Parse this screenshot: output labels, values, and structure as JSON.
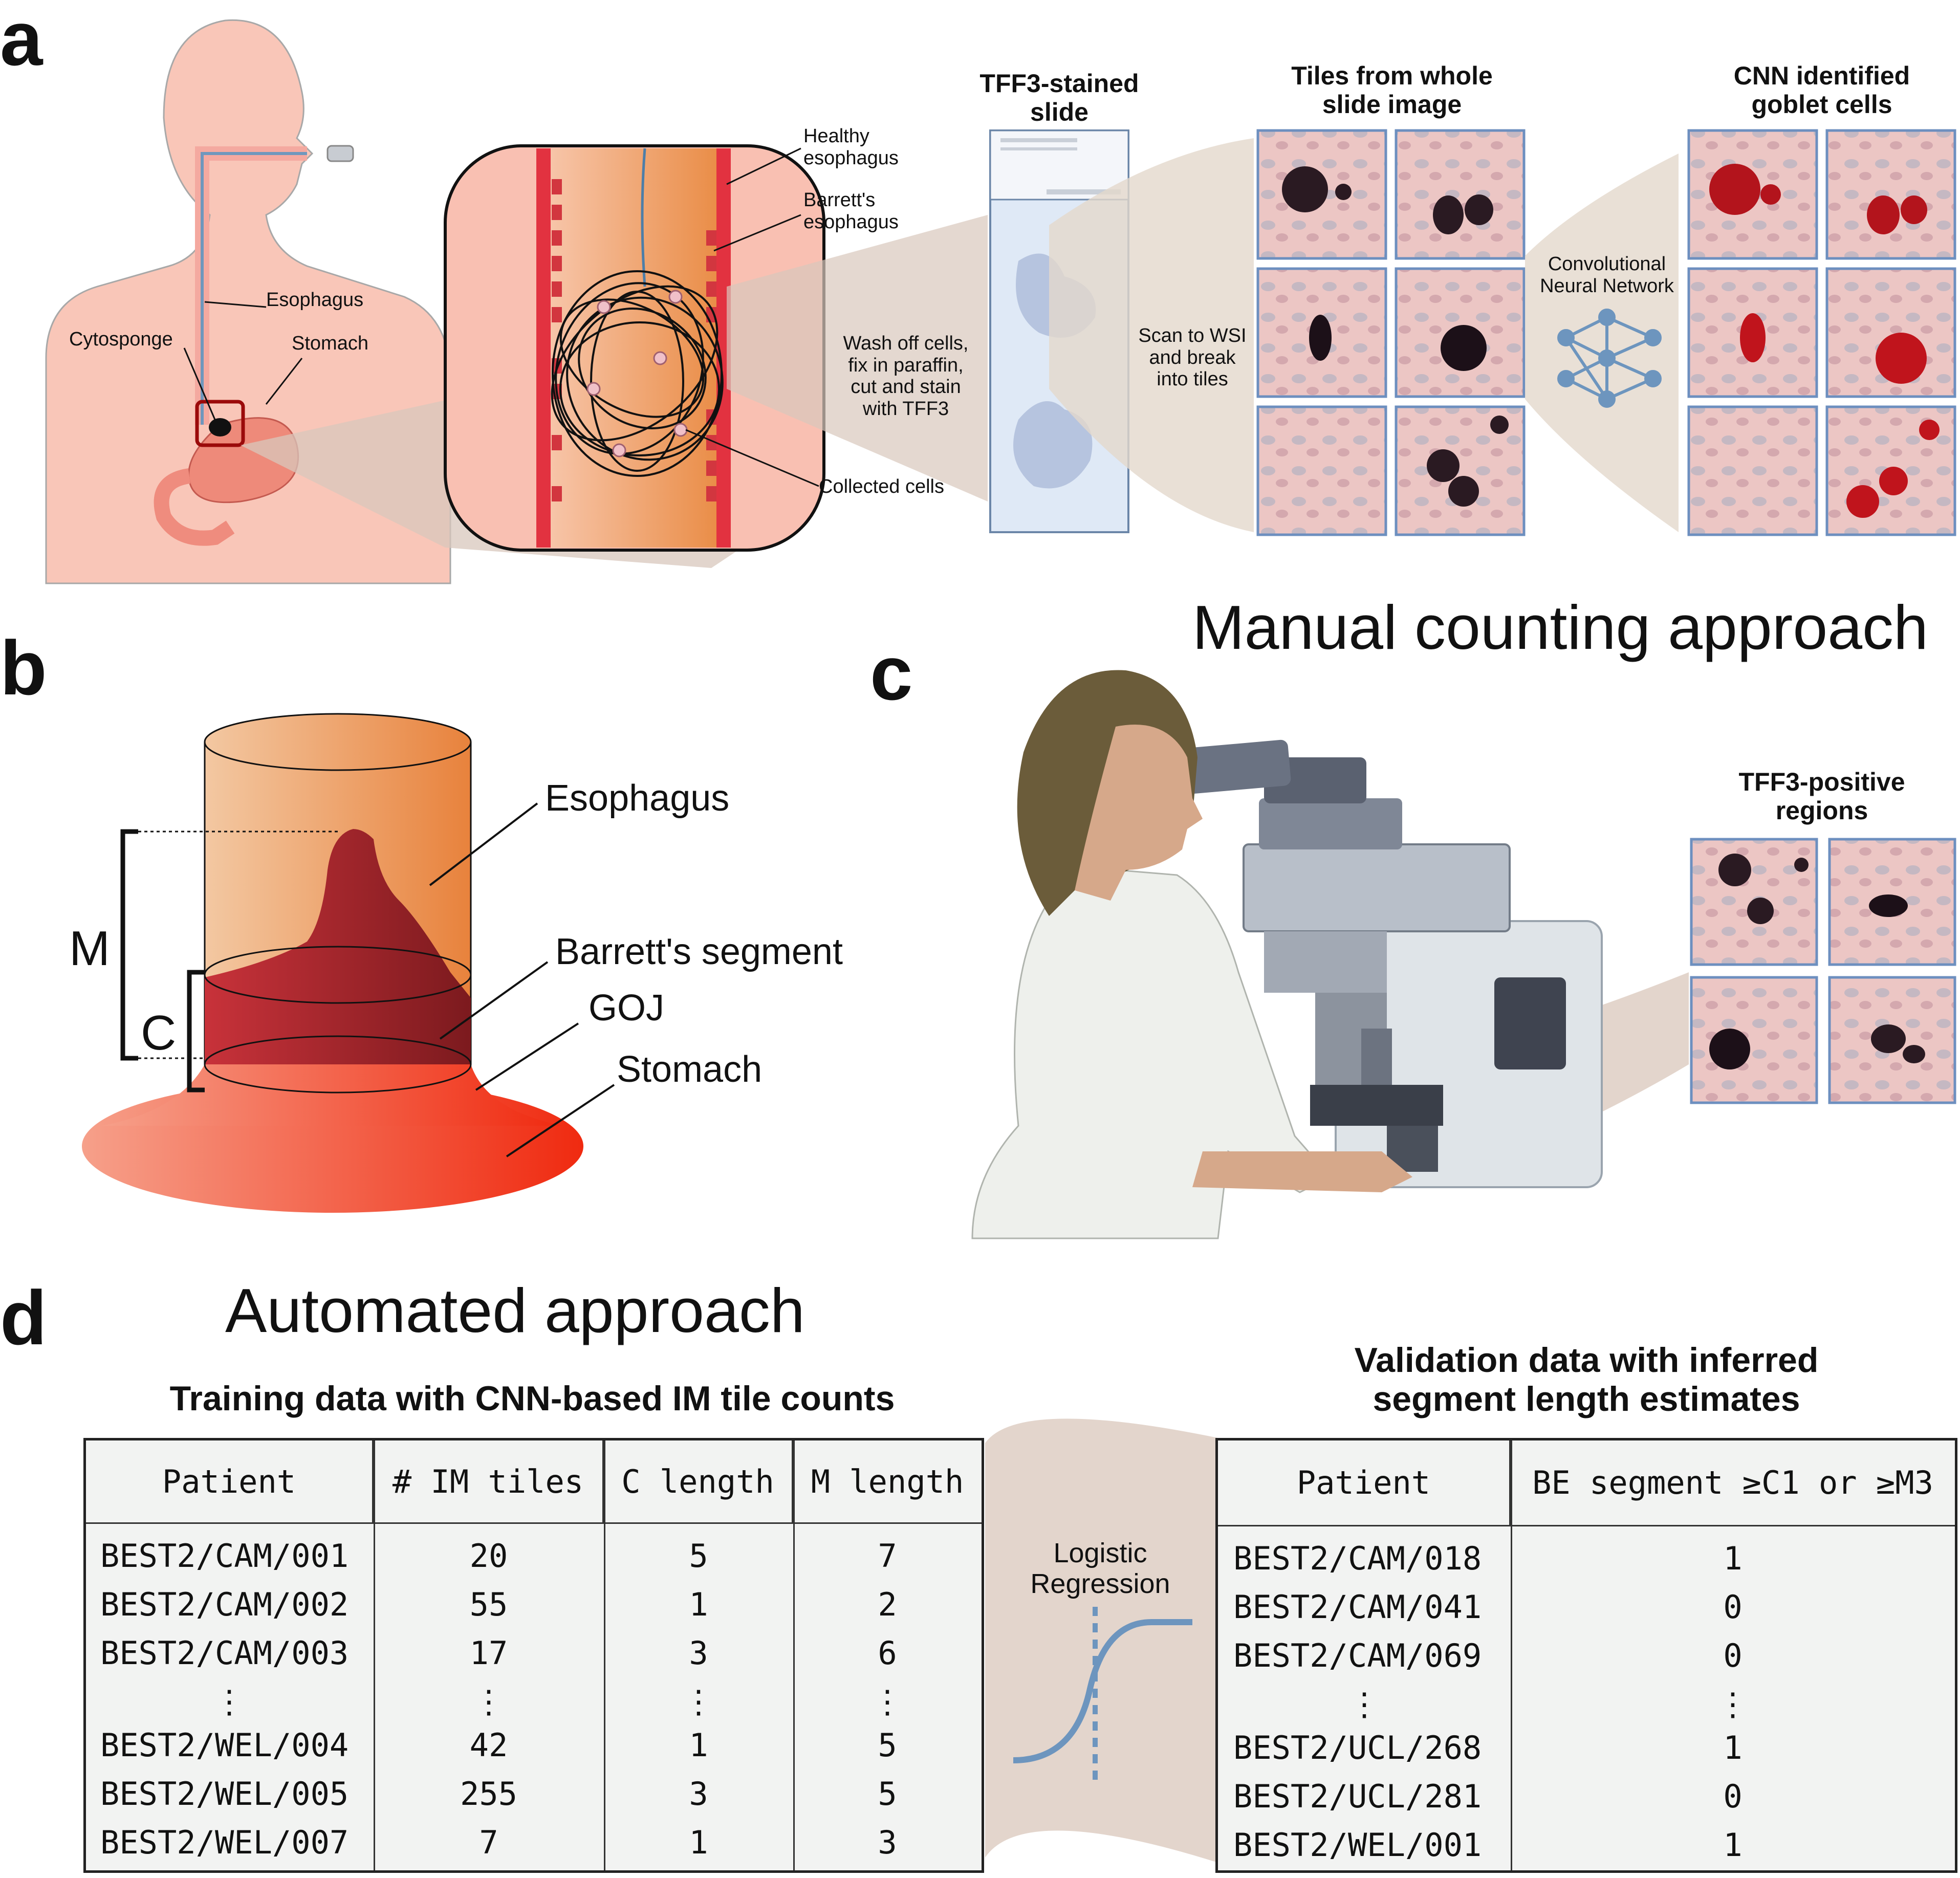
{
  "panels": {
    "a": "a",
    "b": "b",
    "c": "c",
    "d": "d"
  },
  "panel_a": {
    "label_healthy": "Healthy\nesophagus",
    "label_barretts": "Barrett's\nesophagus",
    "label_esophagus": "Esophagus",
    "label_cytosponge": "Cytosponge",
    "label_stomach": "Stomach",
    "label_collected": "Collected cells",
    "label_wash": "Wash off cells,\nfix in paraffin,\ncut and stain\nwith TFF3",
    "header_slide": "TFF3-stained\nslide",
    "label_scan": "Scan to WSI\nand break\ninto tiles",
    "header_tiles": "Tiles from whole\nslide image",
    "label_cnn": "Convolutional\nNeural Network",
    "header_cnn": "CNN identified\ngoblet cells"
  },
  "panel_b": {
    "label_esophagus": "Esophagus",
    "label_barretts": "Barrett's segment",
    "label_goj": "GOJ",
    "label_stomach": "Stomach",
    "label_m": "M",
    "label_c": "C"
  },
  "panel_c": {
    "title": "Manual counting approach",
    "header_regions": "TFF3-positive\nregions"
  },
  "panel_d": {
    "title": "Automated approach",
    "training_title": "Training data with CNN-based IM tile counts",
    "validation_title": "Validation data with inferred\nsegment length estimates",
    "regression_label": "Logistic\nRegression",
    "training_table": {
      "headers": [
        "Patient",
        "# IM tiles",
        "C length",
        "M length"
      ],
      "rows": [
        [
          "BEST2/CAM/001",
          "20",
          "5",
          "7"
        ],
        [
          "BEST2/CAM/002",
          "55",
          "1",
          "2"
        ],
        [
          "BEST2/CAM/003",
          "17",
          "3",
          "6"
        ],
        [
          "⋮",
          "⋮",
          "⋮",
          "⋮"
        ],
        [
          "BEST2/WEL/004",
          "42",
          "1",
          "5"
        ],
        [
          "BEST2/WEL/005",
          "255",
          "3",
          "5"
        ],
        [
          "BEST2/WEL/007",
          "7",
          "1",
          "3"
        ]
      ]
    },
    "validation_table": {
      "headers": [
        "Patient",
        "BE segment ≥C1 or ≥M3"
      ],
      "rows": [
        [
          "BEST2/CAM/018",
          "1"
        ],
        [
          "BEST2/CAM/041",
          "0"
        ],
        [
          "BEST2/CAM/069",
          "0"
        ],
        [
          "⋮",
          "⋮"
        ],
        [
          "BEST2/UCL/268",
          "1"
        ],
        [
          "BEST2/UCL/281",
          "0"
        ],
        [
          "BEST2/WEL/001",
          "1"
        ]
      ]
    }
  }
}
